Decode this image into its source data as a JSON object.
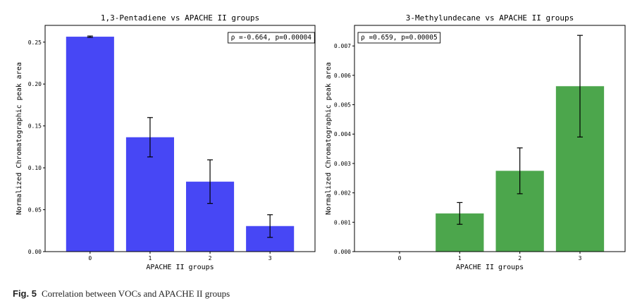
{
  "chart_data": [
    {
      "type": "bar",
      "title": "1,3-Pentadiene vs APACHE II groups",
      "xlabel": "APACHE II groups",
      "ylabel": "Normalized Chromatographic peak area",
      "categories": [
        "0",
        "1",
        "2",
        "3"
      ],
      "values": [
        0.2565,
        0.1365,
        0.0835,
        0.0305
      ],
      "error": [
        0.0008,
        0.0235,
        0.026,
        0.0135
      ],
      "ylim": [
        0,
        0.27
      ],
      "yticks": [
        "0.00",
        "0.05",
        "0.10",
        "0.15",
        "0.20",
        "0.25"
      ],
      "color": "#4747f5",
      "annotation": "ρ =-0.664, p=0.00004",
      "annotation_position": "top-right",
      "grid": false
    },
    {
      "type": "bar",
      "title": "3-Methylundecane vs APACHE II groups",
      "xlabel": "APACHE II groups",
      "ylabel": "Normalized Chromatographic peak area",
      "categories": [
        "0",
        "1",
        "2",
        "3"
      ],
      "values": [
        0,
        0.0013,
        0.00275,
        0.00563
      ],
      "error": [
        0,
        0.00037,
        0.00078,
        0.00173
      ],
      "ylim": [
        0,
        0.0077
      ],
      "yticks": [
        "0.000",
        "0.001",
        "0.002",
        "0.003",
        "0.004",
        "0.005",
        "0.006",
        "0.007"
      ],
      "color": "#4ca64c",
      "annotation": "ρ =0.659, p=0.00005",
      "annotation_position": "top-left",
      "grid": false
    }
  ],
  "caption": {
    "label": "Fig. 5",
    "text": "Correlation between VOCs and APACHE II groups"
  }
}
